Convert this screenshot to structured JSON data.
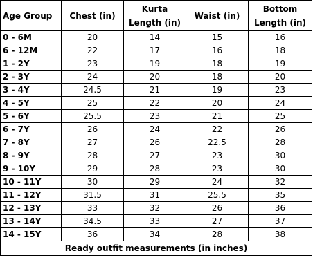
{
  "table": {
    "headers": [
      {
        "lines": [
          "Age Group"
        ]
      },
      {
        "lines": [
          "Chest (in)"
        ]
      },
      {
        "lines": [
          "Kurta",
          "Length (in)"
        ]
      },
      {
        "lines": [
          "Waist (in)"
        ]
      },
      {
        "lines": [
          "Bottom",
          "Length (in)"
        ]
      }
    ],
    "rows": [
      [
        "0 - 6M",
        "20",
        "14",
        "15",
        "16"
      ],
      [
        "6 - 12M",
        "22",
        "17",
        "16",
        "18"
      ],
      [
        "1 - 2Y",
        "23",
        "19",
        "18",
        "19"
      ],
      [
        "2 - 3Y",
        "24",
        "20",
        "18",
        "20"
      ],
      [
        "3 - 4Y",
        "24.5",
        "21",
        "19",
        "23"
      ],
      [
        "4 - 5Y",
        "25",
        "22",
        "20",
        "24"
      ],
      [
        "5 - 6Y",
        "25.5",
        "23",
        "21",
        "25"
      ],
      [
        "6 - 7Y",
        "26",
        "24",
        "22",
        "26"
      ],
      [
        "7 - 8Y",
        "27",
        "26",
        "22.5",
        "28"
      ],
      [
        "8 - 9Y",
        "28",
        "27",
        "23",
        "30"
      ],
      [
        "9 - 10Y",
        "29",
        "28",
        "23",
        "30"
      ],
      [
        "10 - 11Y",
        "30",
        "29",
        "24",
        "32"
      ],
      [
        "11 - 12Y",
        "31.5",
        "31",
        "25.5",
        "35"
      ],
      [
        "12 - 13Y",
        "33",
        "32",
        "26",
        "36"
      ],
      [
        "13 - 14Y",
        "34.5",
        "33",
        "27",
        "37"
      ],
      [
        "14 - 15Y",
        "36",
        "34",
        "28",
        "38"
      ]
    ],
    "footer": "Ready outfit measurements (in inches)"
  }
}
